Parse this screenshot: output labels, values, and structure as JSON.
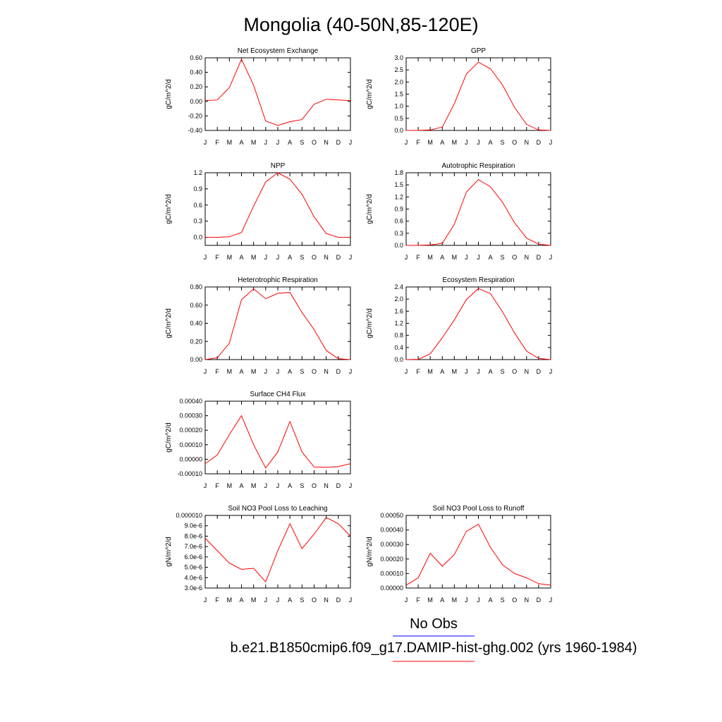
{
  "figure": {
    "title": "Mongolia (40-50N,85-120E)"
  },
  "legend": {
    "entries": [
      {
        "label": "No Obs",
        "color": "#0000ff"
      },
      {
        "label": "b.e21.B1850cmip6.f09_g17.DAMIP-hist-ghg.002 (yrs 1960-1984)",
        "color": "#ff0000"
      }
    ]
  },
  "chart_data": [
    {
      "type": "line",
      "title": "Net Ecosystem Exchange",
      "ylabel": "gC/m^2/d",
      "categories": [
        "J",
        "F",
        "M",
        "A",
        "M",
        "J",
        "J",
        "A",
        "S",
        "O",
        "N",
        "D",
        "J"
      ],
      "yticks": [
        "-0.40",
        "-0.20",
        "0.00",
        "0.20",
        "0.40",
        "0.60"
      ],
      "ylim": [
        -0.4,
        0.6
      ],
      "series": [
        {
          "color": "#ff0000",
          "values": [
            0.01,
            0.02,
            0.19,
            0.58,
            0.22,
            -0.27,
            -0.33,
            -0.28,
            -0.25,
            -0.04,
            0.03,
            0.02,
            0.01
          ]
        }
      ]
    },
    {
      "type": "line",
      "title": "GPP",
      "ylabel": "gC/m^2/d",
      "categories": [
        "J",
        "F",
        "M",
        "A",
        "M",
        "J",
        "J",
        "A",
        "S",
        "O",
        "N",
        "D",
        "J"
      ],
      "yticks": [
        "0.0",
        "0.5",
        "1.0",
        "1.5",
        "2.0",
        "2.5",
        "3.0"
      ],
      "ylim": [
        0.0,
        3.0
      ],
      "series": [
        {
          "color": "#ff0000",
          "values": [
            0.0,
            0.0,
            0.02,
            0.14,
            1.1,
            2.33,
            2.82,
            2.55,
            1.88,
            0.95,
            0.25,
            0.02,
            0.0
          ]
        }
      ]
    },
    {
      "type": "line",
      "title": "NPP",
      "ylabel": "gC/m^2/d",
      "categories": [
        "J",
        "F",
        "M",
        "A",
        "M",
        "J",
        "J",
        "A",
        "S",
        "O",
        "N",
        "D",
        "J"
      ],
      "yticks": [
        "0.0",
        "0.3",
        "0.6",
        "0.9",
        "1.2"
      ],
      "ylim": [
        -0.15,
        1.2
      ],
      "series": [
        {
          "color": "#ff0000",
          "values": [
            0.0,
            0.0,
            0.01,
            0.09,
            0.58,
            1.03,
            1.2,
            1.08,
            0.8,
            0.38,
            0.07,
            0.0,
            0.0
          ]
        }
      ]
    },
    {
      "type": "line",
      "title": "Autotrophic Respiration",
      "ylabel": "gC/m^2/d",
      "categories": [
        "J",
        "F",
        "M",
        "A",
        "M",
        "J",
        "J",
        "A",
        "S",
        "O",
        "N",
        "D",
        "J"
      ],
      "yticks": [
        "0.0",
        "0.3",
        "0.6",
        "0.9",
        "1.2",
        "1.5",
        "1.8"
      ],
      "ylim": [
        0.0,
        1.8
      ],
      "series": [
        {
          "color": "#ff0000",
          "values": [
            0.0,
            0.0,
            0.01,
            0.05,
            0.52,
            1.32,
            1.63,
            1.45,
            1.07,
            0.56,
            0.18,
            0.03,
            0.0
          ]
        }
      ]
    },
    {
      "type": "line",
      "title": "Heterotrophic Respiration",
      "ylabel": "gC/m^2/d",
      "categories": [
        "J",
        "F",
        "M",
        "A",
        "M",
        "J",
        "J",
        "A",
        "S",
        "O",
        "N",
        "D",
        "J"
      ],
      "yticks": [
        "0.00",
        "0.20",
        "0.40",
        "0.60",
        "0.80"
      ],
      "ylim": [
        0.0,
        0.8
      ],
      "series": [
        {
          "color": "#ff0000",
          "values": [
            0.0,
            0.02,
            0.18,
            0.66,
            0.78,
            0.67,
            0.73,
            0.74,
            0.52,
            0.33,
            0.1,
            0.01,
            0.0
          ]
        }
      ]
    },
    {
      "type": "line",
      "title": "Ecosystem Respiration",
      "ylabel": "gC/m^2/d",
      "categories": [
        "J",
        "F",
        "M",
        "A",
        "M",
        "J",
        "J",
        "A",
        "S",
        "O",
        "N",
        "D",
        "J"
      ],
      "yticks": [
        "0.0",
        "0.4",
        "0.8",
        "1.2",
        "1.6",
        "2.0",
        "2.4"
      ],
      "ylim": [
        0.0,
        2.4
      ],
      "series": [
        {
          "color": "#ff0000",
          "values": [
            0.0,
            0.01,
            0.19,
            0.72,
            1.31,
            1.98,
            2.35,
            2.18,
            1.58,
            0.88,
            0.28,
            0.04,
            0.0
          ]
        }
      ]
    },
    {
      "type": "line",
      "title": "Surface CH4 Flux",
      "ylabel": "gC/m^2/d",
      "categories": [
        "J",
        "F",
        "M",
        "A",
        "M",
        "J",
        "J",
        "A",
        "S",
        "O",
        "N",
        "D",
        "J"
      ],
      "yticks": [
        "-0.00010",
        "0.00000",
        "0.00010",
        "0.00020",
        "0.00030",
        "0.00040"
      ],
      "ylim": [
        -0.0001,
        0.0004
      ],
      "series": [
        {
          "color": "#ff0000",
          "values": [
            -3e-05,
            3e-05,
            0.00017,
            0.0003,
            0.0001,
            -6e-05,
            5e-05,
            0.00026,
            5e-05,
            -5.3e-05,
            -5.5e-05,
            -5e-05,
            -3e-05
          ]
        }
      ]
    },
    {
      "type": "line",
      "title": "Soil NO3 Pool Loss to Leaching",
      "ylabel": "gN/m^2/d",
      "categories": [
        "J",
        "F",
        "M",
        "A",
        "M",
        "J",
        "J",
        "A",
        "S",
        "O",
        "N",
        "D",
        "J"
      ],
      "yticks": [
        "3.0e-6",
        "4.0e-6",
        "5.0e-6",
        "6.0e-6",
        "7.0e-6",
        "8.0e-6",
        "9.0e-6",
        "0.000010"
      ],
      "ylim": [
        3e-06,
        1e-05
      ],
      "series": [
        {
          "color": "#ff0000",
          "values": [
            7.8e-06,
            6.6e-06,
            5.4e-06,
            4.8e-06,
            4.9e-06,
            3.6e-06,
            6.6e-06,
            9.2e-06,
            6.8e-06,
            8.2e-06,
            9.8e-06,
            9.2e-06,
            8e-06
          ]
        }
      ]
    },
    {
      "type": "line",
      "title": "Soil NO3 Pool Loss to Runoff",
      "ylabel": "gN/m^2/d",
      "categories": [
        "J",
        "F",
        "M",
        "A",
        "M",
        "J",
        "J",
        "A",
        "S",
        "O",
        "N",
        "D",
        "J"
      ],
      "yticks": [
        "0.00000",
        "0.00010",
        "0.00020",
        "0.00030",
        "0.00040",
        "0.00050"
      ],
      "ylim": [
        0.0,
        0.0005
      ],
      "series": [
        {
          "color": "#ff0000",
          "values": [
            2e-05,
            7e-05,
            0.00024,
            0.00015,
            0.00023,
            0.00039,
            0.00044,
            0.00028,
            0.00016,
            0.0001,
            7e-05,
            3e-05,
            2e-05
          ]
        }
      ]
    }
  ]
}
